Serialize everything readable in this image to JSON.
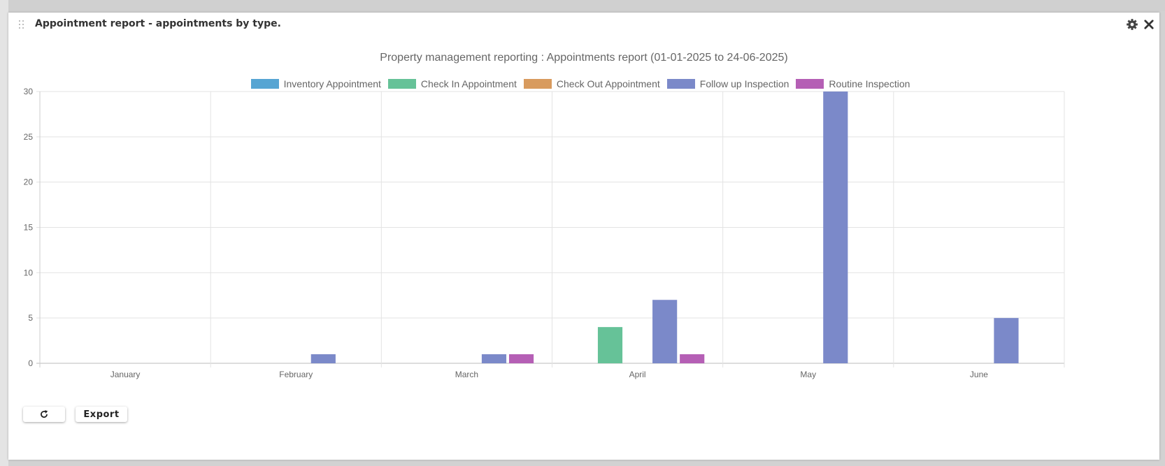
{
  "panel": {
    "title": "Appointment report - appointments by type.",
    "icons": {
      "drag": "drag-handle-icon",
      "settings": "gear-icon",
      "close": "close-icon",
      "refresh": "refresh-icon"
    }
  },
  "buttons": {
    "export_label": "Export"
  },
  "chart_data": {
    "type": "bar",
    "title": "Property management reporting : Appointments report (01-01-2025 to 24-06-2025)",
    "xlabel": "",
    "ylabel": "",
    "categories": [
      "January",
      "February",
      "March",
      "April",
      "May",
      "June"
    ],
    "ylim": [
      0,
      30
    ],
    "yticks": [
      0,
      5,
      10,
      15,
      20,
      25,
      30
    ],
    "grid": true,
    "legend_position": "top",
    "series": [
      {
        "name": "Inventory Appointment",
        "color": "#56a5d3",
        "values": [
          0,
          0,
          0,
          0,
          0,
          0
        ]
      },
      {
        "name": "Check In Appointment",
        "color": "#66c298",
        "values": [
          0,
          0,
          0,
          4,
          0,
          0
        ]
      },
      {
        "name": "Check Out Appointment",
        "color": "#d89b5e",
        "values": [
          0,
          0,
          0,
          0,
          0,
          0
        ]
      },
      {
        "name": "Follow up Inspection",
        "color": "#7b89c9",
        "values": [
          0,
          1,
          1,
          7,
          30,
          5
        ]
      },
      {
        "name": "Routine Inspection",
        "color": "#b55fb5",
        "values": [
          0,
          0,
          1,
          1,
          0,
          0
        ]
      }
    ]
  }
}
